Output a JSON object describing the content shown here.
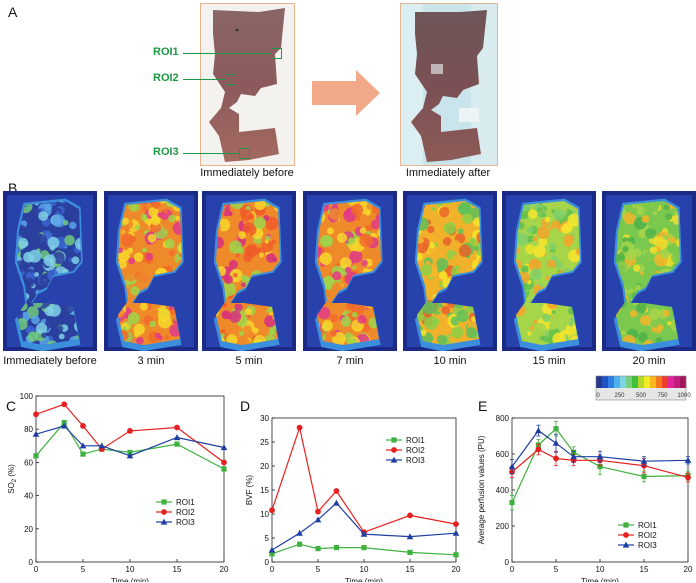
{
  "panels": {
    "a": {
      "letter": "A",
      "before_caption": "Immediately before",
      "after_caption": "Immediately after",
      "roi_labels": [
        "ROI1",
        "ROI2",
        "ROI3"
      ]
    },
    "b": {
      "letter": "B",
      "time_labels": [
        "Immediately before",
        "3 min",
        "5 min",
        "7 min",
        "10 min",
        "15 min",
        "20 min"
      ],
      "scale_ticks": [
        "0",
        "250",
        "500",
        "750",
        "1000"
      ],
      "scale_colors": [
        "#26398f",
        "#1e54c4",
        "#2f7ee6",
        "#4db3ee",
        "#7fd4e6",
        "#76d07e",
        "#3fbf3a",
        "#b6d82c",
        "#f0ec21",
        "#f9b61d",
        "#f37a1d",
        "#ef3d2c",
        "#e0249a",
        "#c21a7e",
        "#a1155b"
      ]
    },
    "c": {
      "letter": "C"
    },
    "d": {
      "letter": "D"
    },
    "e": {
      "letter": "E"
    }
  },
  "colors": {
    "roi": "#1e9a46",
    "series1": "#3eb13e",
    "series2": "#e62020",
    "series3": "#1f3ea3"
  },
  "chart_data": [
    {
      "id": "c",
      "type": "line",
      "title": "",
      "xlabel": "Time (min)",
      "ylabel_main": "SO",
      "ylabel_sub": "2",
      "ylabel_tail": " (%)",
      "xlim": [
        0,
        20
      ],
      "ylim": [
        0,
        100
      ],
      "xticks": [
        0,
        5,
        10,
        15,
        20
      ],
      "yticks": [
        0,
        20,
        40,
        60,
        80,
        100
      ],
      "x": [
        0,
        3,
        5,
        7,
        10,
        15,
        20
      ],
      "series": [
        {
          "name": "ROI1",
          "marker": "square",
          "values": [
            64,
            84,
            65,
            68,
            66,
            71,
            56
          ]
        },
        {
          "name": "ROI2",
          "marker": "circle",
          "values": [
            89,
            95,
            82,
            68,
            79,
            81,
            60
          ]
        },
        {
          "name": "ROI3",
          "marker": "triangle",
          "values": [
            77,
            82,
            70,
            70,
            64,
            75,
            69
          ]
        }
      ],
      "legend": "bottom-right"
    },
    {
      "id": "d",
      "type": "line",
      "title": "",
      "xlabel": "Time (min)",
      "ylabel_main": "BVF (%)",
      "ylabel_sub": "",
      "ylabel_tail": "",
      "xlim": [
        0,
        20
      ],
      "ylim": [
        0,
        30
      ],
      "xticks": [
        0,
        5,
        10,
        15,
        20
      ],
      "yticks": [
        0,
        5,
        10,
        15,
        20,
        25,
        30
      ],
      "x": [
        0,
        3,
        5,
        7,
        10,
        15,
        20
      ],
      "series": [
        {
          "name": "ROI1",
          "marker": "square",
          "values": [
            1.7,
            3.7,
            2.8,
            3.0,
            3.0,
            2.0,
            1.5
          ]
        },
        {
          "name": "ROI2",
          "marker": "circle",
          "values": [
            10.8,
            28.0,
            10.5,
            14.8,
            6.2,
            9.7,
            7.9
          ]
        },
        {
          "name": "ROI3",
          "marker": "triangle",
          "values": [
            2.5,
            6.0,
            8.8,
            12.3,
            5.8,
            5.3,
            6.0
          ]
        }
      ],
      "legend": "top-right"
    },
    {
      "id": "e",
      "type": "line",
      "title": "",
      "xlabel": "Time (min)",
      "ylabel_main": "Average perfusion values (PU)",
      "ylabel_sub": "",
      "ylabel_tail": "",
      "xlim": [
        0,
        20
      ],
      "ylim": [
        0,
        800
      ],
      "xticks": [
        0,
        5,
        10,
        15,
        20
      ],
      "yticks": [
        0,
        200,
        400,
        600,
        800
      ],
      "x": [
        0,
        3,
        5,
        7,
        10,
        15,
        20
      ],
      "series": [
        {
          "name": "ROI1",
          "marker": "square",
          "values": [
            330,
            650,
            740,
            610,
            530,
            475,
            480
          ],
          "errors": [
            40,
            30,
            40,
            30,
            45,
            30,
            25
          ]
        },
        {
          "name": "ROI2",
          "marker": "circle",
          "values": [
            500,
            625,
            575,
            565,
            565,
            535,
            470
          ],
          "errors": [
            30,
            30,
            40,
            30,
            30,
            40,
            25
          ]
        },
        {
          "name": "ROI3",
          "marker": "triangle",
          "values": [
            530,
            730,
            660,
            585,
            585,
            560,
            565
          ],
          "errors": [
            40,
            30,
            50,
            30,
            30,
            25,
            20
          ]
        }
      ],
      "legend": "bottom-right"
    }
  ]
}
